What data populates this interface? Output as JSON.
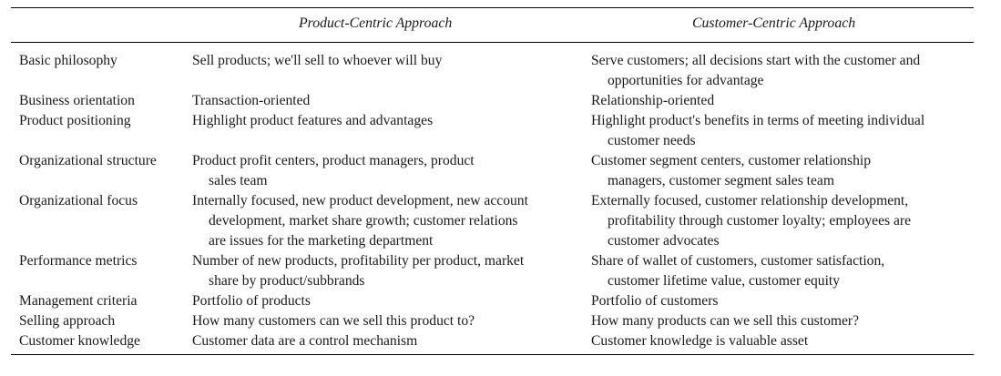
{
  "table": {
    "headers": [
      "Product-Centric Approach",
      "Customer-Centric Approach"
    ],
    "rows": [
      {
        "label": "Basic philosophy",
        "product": [
          "Sell products; we'll sell to whoever will buy"
        ],
        "customer": [
          "Serve customers; all decisions start with the customer and",
          "opportunities for advantage"
        ]
      },
      {
        "label": "Business orientation",
        "product": [
          "Transaction-oriented"
        ],
        "customer": [
          "Relationship-oriented"
        ]
      },
      {
        "label": "Product positioning",
        "product": [
          "Highlight product features and advantages"
        ],
        "customer": [
          "Highlight product's benefits in terms of meeting individual",
          "customer needs"
        ]
      },
      {
        "label": "Organizational structure",
        "product": [
          "Product profit centers, product managers, product",
          "sales team"
        ],
        "customer": [
          "Customer segment centers, customer relationship",
          "managers, customer segment sales team"
        ]
      },
      {
        "label": "Organizational focus",
        "product": [
          "Internally focused, new product development, new account",
          "development, market share growth; customer relations",
          "are issues for the marketing department"
        ],
        "customer": [
          "Externally focused, customer relationship development,",
          "profitability through customer loyalty; employees are",
          "customer advocates"
        ]
      },
      {
        "label": "Performance metrics",
        "product": [
          "Number of new products, profitability per product, market",
          "share by product/subbrands"
        ],
        "customer": [
          "Share of wallet of customers, customer satisfaction,",
          "customer lifetime value, customer equity"
        ]
      },
      {
        "label": "Management criteria",
        "product": [
          "Portfolio of products"
        ],
        "customer": [
          "Portfolio of customers"
        ]
      },
      {
        "label": "Selling approach",
        "product": [
          "How many customers can we sell this product to?"
        ],
        "customer": [
          "How many products can we sell this customer?"
        ]
      },
      {
        "label": "Customer knowledge",
        "product": [
          "Customer data are a control mechanism"
        ],
        "customer": [
          "Customer knowledge is valuable asset"
        ]
      }
    ]
  }
}
